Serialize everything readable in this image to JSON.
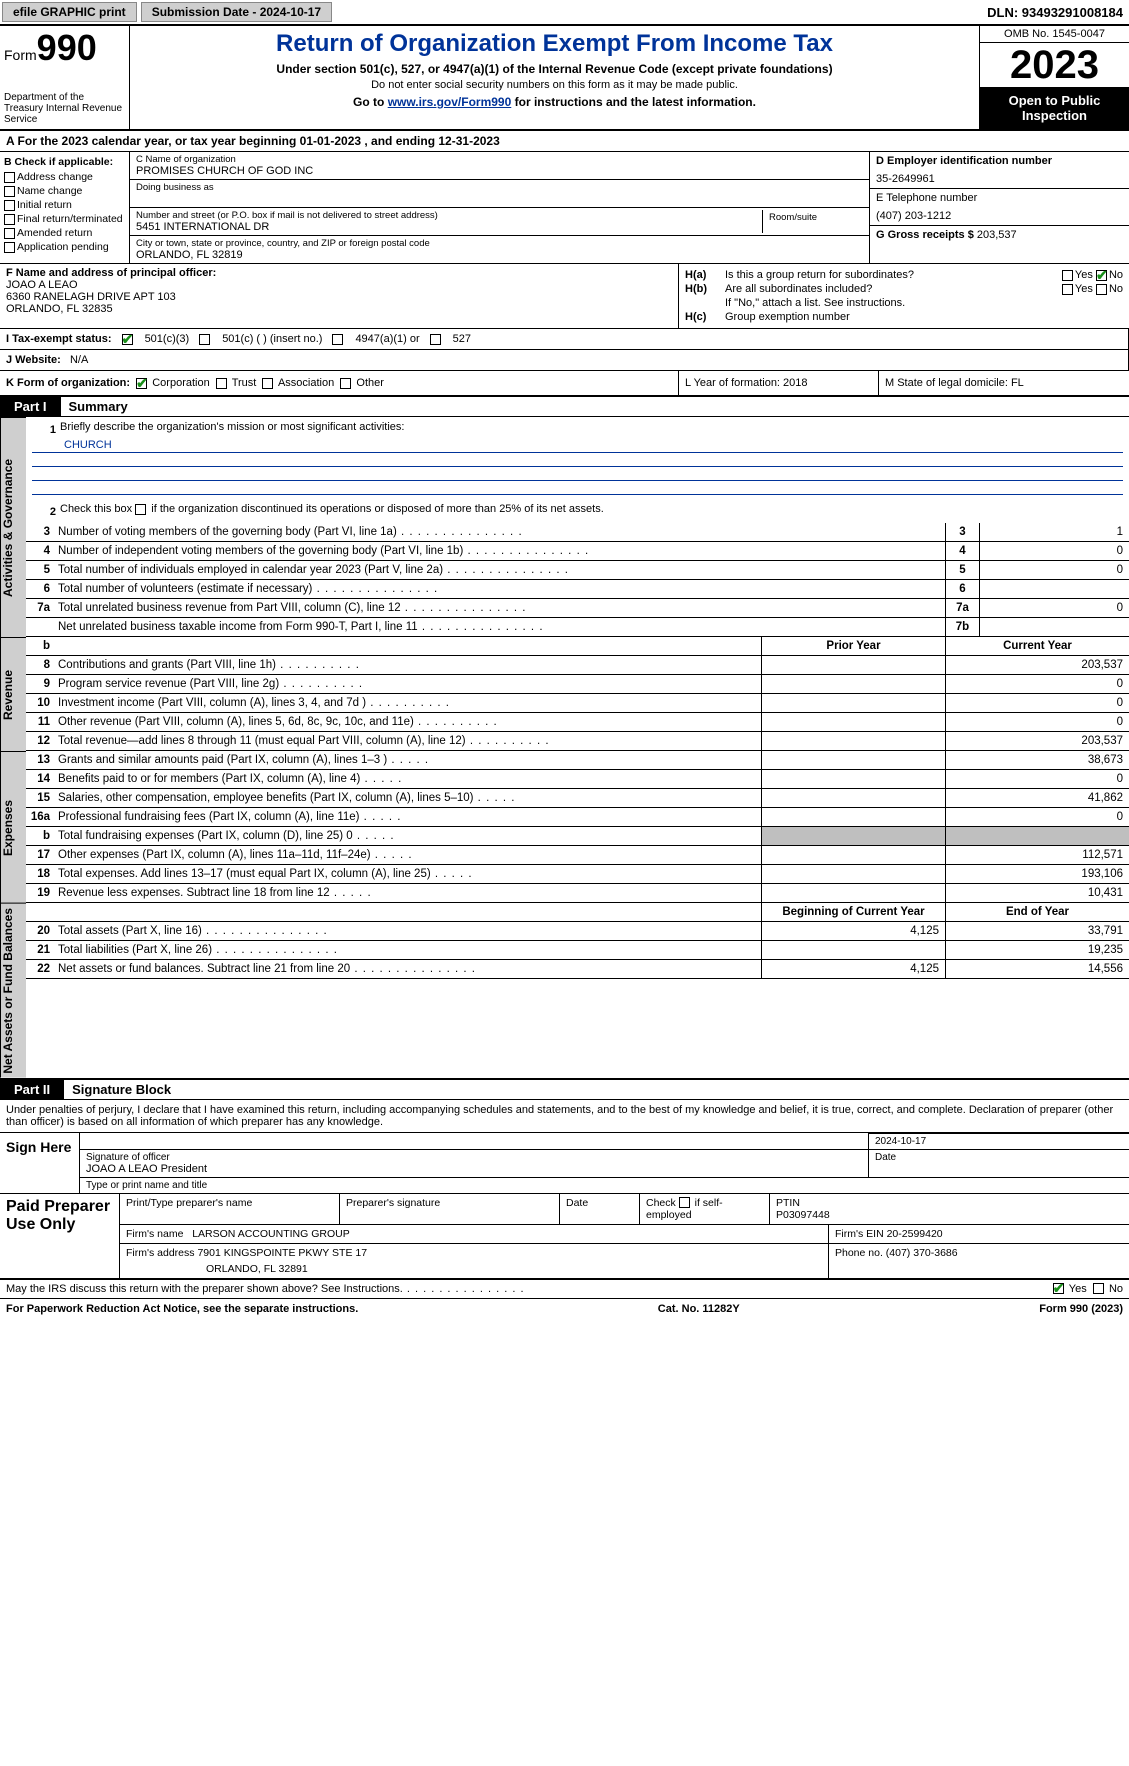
{
  "topbar": {
    "efile": "efile GRAPHIC print",
    "submission": "Submission Date - 2024-10-17",
    "dln": "DLN: 93493291008184"
  },
  "header": {
    "form_word": "Form",
    "form_num": "990",
    "dept": "Department of the Treasury Internal Revenue Service",
    "title": "Return of Organization Exempt From Income Tax",
    "sub1": "Under section 501(c), 527, or 4947(a)(1) of the Internal Revenue Code (except private foundations)",
    "sub2": "Do not enter social security numbers on this form as it may be made public.",
    "sub3_pre": "Go to ",
    "sub3_link": "www.irs.gov/Form990",
    "sub3_post": " for instructions and the latest information.",
    "omb": "OMB No. 1545-0047",
    "year": "2023",
    "open": "Open to Public Inspection"
  },
  "lineA": "A For the 2023 calendar year, or tax year beginning 01-01-2023   , and ending 12-31-2023",
  "boxB": {
    "hdr": "B Check if applicable:",
    "opts": [
      "Address change",
      "Name change",
      "Initial return",
      "Final return/terminated",
      "Amended return",
      "Application pending"
    ]
  },
  "boxC": {
    "name_lbl": "C Name of organization",
    "name": "PROMISES CHURCH OF GOD INC",
    "dba_lbl": "Doing business as",
    "addr_lbl": "Number and street (or P.O. box if mail is not delivered to street address)",
    "addr": "5451 INTERNATIONAL DR",
    "room_lbl": "Room/suite",
    "city_lbl": "City or town, state or province, country, and ZIP or foreign postal code",
    "city": "ORLANDO, FL  32819"
  },
  "boxD": {
    "lbl": "D Employer identification number",
    "val": "35-2649961"
  },
  "boxE": {
    "lbl": "E Telephone number",
    "val": "(407) 203-1212"
  },
  "boxG": {
    "lbl": "G Gross receipts $",
    "val": "203,537"
  },
  "boxF": {
    "lbl": "F  Name and address of principal officer:",
    "name": "JOAO A LEAO",
    "addr1": "6360 RANELAGH DRIVE APT 103",
    "addr2": "ORLANDO, FL  32835"
  },
  "boxH": {
    "a_lbl": "H(a)",
    "a_txt": "Is this a group return for subordinates?",
    "b_lbl": "H(b)",
    "b_txt": "Are all subordinates included?",
    "b_note": "If \"No,\" attach a list. See instructions.",
    "c_lbl": "H(c)",
    "c_txt": "Group exemption number"
  },
  "rowI": {
    "tag": "I  Tax-exempt status:",
    "o1": "501(c)(3)",
    "o2": "501(c) (  ) (insert no.)",
    "o3": "4947(a)(1) or",
    "o4": "527"
  },
  "rowJ": {
    "tag": "J   Website:",
    "val": "N/A"
  },
  "rowK": {
    "tag": "K Form of organization:",
    "o1": "Corporation",
    "o2": "Trust",
    "o3": "Association",
    "o4": "Other"
  },
  "rowL": {
    "txt": "L Year of formation: 2018"
  },
  "rowM": {
    "txt": "M State of legal domicile: FL"
  },
  "part1": {
    "tag": "Part I",
    "title": "Summary"
  },
  "vtabs": {
    "gov": "Activities & Governance",
    "rev": "Revenue",
    "exp": "Expenses",
    "net": "Net Assets or Fund Balances"
  },
  "gov": {
    "l1": "Briefly describe the organization's mission or most significant activities:",
    "l1v": "CHURCH",
    "l2": "Check this box ",
    "l2b": " if the organization discontinued its operations or disposed of more than 25% of its net assets.",
    "rows": [
      {
        "n": "3",
        "d": "Number of voting members of the governing body (Part VI, line 1a)",
        "c": "3",
        "v": "1"
      },
      {
        "n": "4",
        "d": "Number of independent voting members of the governing body (Part VI, line 1b)",
        "c": "4",
        "v": "0"
      },
      {
        "n": "5",
        "d": "Total number of individuals employed in calendar year 2023 (Part V, line 2a)",
        "c": "5",
        "v": "0"
      },
      {
        "n": "6",
        "d": "Total number of volunteers (estimate if necessary)",
        "c": "6",
        "v": ""
      },
      {
        "n": "7a",
        "d": "Total unrelated business revenue from Part VIII, column (C), line 12",
        "c": "7a",
        "v": "0"
      },
      {
        "n": "",
        "d": "Net unrelated business taxable income from Form 990-T, Part I, line 11",
        "c": "7b",
        "v": ""
      }
    ]
  },
  "colhdr": {
    "prior": "Prior Year",
    "current": "Current Year",
    "begin": "Beginning of Current Year",
    "end": "End of Year"
  },
  "rev": [
    {
      "n": "8",
      "d": "Contributions and grants (Part VIII, line 1h)",
      "p": "",
      "c": "203,537"
    },
    {
      "n": "9",
      "d": "Program service revenue (Part VIII, line 2g)",
      "p": "",
      "c": "0"
    },
    {
      "n": "10",
      "d": "Investment income (Part VIII, column (A), lines 3, 4, and 7d )",
      "p": "",
      "c": "0"
    },
    {
      "n": "11",
      "d": "Other revenue (Part VIII, column (A), lines 5, 6d, 8c, 9c, 10c, and 11e)",
      "p": "",
      "c": "0"
    },
    {
      "n": "12",
      "d": "Total revenue—add lines 8 through 11 (must equal Part VIII, column (A), line 12)",
      "p": "",
      "c": "203,537"
    }
  ],
  "exp": [
    {
      "n": "13",
      "d": "Grants and similar amounts paid (Part IX, column (A), lines 1–3 )",
      "p": "",
      "c": "38,673"
    },
    {
      "n": "14",
      "d": "Benefits paid to or for members (Part IX, column (A), line 4)",
      "p": "",
      "c": "0"
    },
    {
      "n": "15",
      "d": "Salaries, other compensation, employee benefits (Part IX, column (A), lines 5–10)",
      "p": "",
      "c": "41,862"
    },
    {
      "n": "16a",
      "d": "Professional fundraising fees (Part IX, column (A), line 11e)",
      "p": "",
      "c": "0"
    },
    {
      "n": "b",
      "d": "Total fundraising expenses (Part IX, column (D), line 25) 0",
      "p": "grey",
      "c": "grey"
    },
    {
      "n": "17",
      "d": "Other expenses (Part IX, column (A), lines 11a–11d, 11f–24e)",
      "p": "",
      "c": "112,571"
    },
    {
      "n": "18",
      "d": "Total expenses. Add lines 13–17 (must equal Part IX, column (A), line 25)",
      "p": "",
      "c": "193,106"
    },
    {
      "n": "19",
      "d": "Revenue less expenses. Subtract line 18 from line 12",
      "p": "",
      "c": "10,431"
    }
  ],
  "net": [
    {
      "n": "20",
      "d": "Total assets (Part X, line 16)",
      "p": "4,125",
      "c": "33,791"
    },
    {
      "n": "21",
      "d": "Total liabilities (Part X, line 26)",
      "p": "",
      "c": "19,235"
    },
    {
      "n": "22",
      "d": "Net assets or fund balances. Subtract line 21 from line 20",
      "p": "4,125",
      "c": "14,556"
    }
  ],
  "part2": {
    "tag": "Part II",
    "title": "Signature Block"
  },
  "sigtext": "Under penalties of perjury, I declare that I have examined this return, including accompanying schedules and statements, and to the best of my knowledge and belief, it is true, correct, and complete. Declaration of preparer (other than officer) is based on all information of which preparer has any knowledge.",
  "sign": {
    "left": "Sign Here",
    "date": "2024-10-17",
    "sig_lbl": "Signature of officer",
    "name": "JOAO A LEAO  President",
    "name_lbl": "Type or print name and title",
    "date_lbl": "Date"
  },
  "prep": {
    "left": "Paid Preparer Use Only",
    "h1": "Print/Type preparer's name",
    "h2": "Preparer's signature",
    "h3": "Date",
    "h4_pre": "Check ",
    "h4_post": " if self-employed",
    "h5_lbl": "PTIN",
    "h5": "P03097448",
    "firm_lbl": "Firm's name   ",
    "firm": "LARSON ACCOUNTING GROUP",
    "ein_lbl": "Firm's EIN ",
    "ein": "20-2599420",
    "addr_lbl": "Firm's address ",
    "addr1": "7901 KINGSPOINTE PKWY STE 17",
    "addr2": "ORLANDO, FL  32891",
    "phone_lbl": "Phone no. ",
    "phone": "(407) 370-3686"
  },
  "bottom": {
    "q": "May the IRS discuss this return with the preparer shown above? See Instructions.",
    "yes": "Yes",
    "no": "No"
  },
  "footer": {
    "left": "For Paperwork Reduction Act Notice, see the separate instructions.",
    "mid": "Cat. No. 11282Y",
    "right_pre": "Form ",
    "right_b": "990",
    "right_post": " (2023)"
  },
  "labels": {
    "yes": "Yes",
    "no": "No"
  },
  "colors": {
    "accent": "#003399",
    "grey": "#cfcfcf",
    "check": "#1a8f1a"
  }
}
